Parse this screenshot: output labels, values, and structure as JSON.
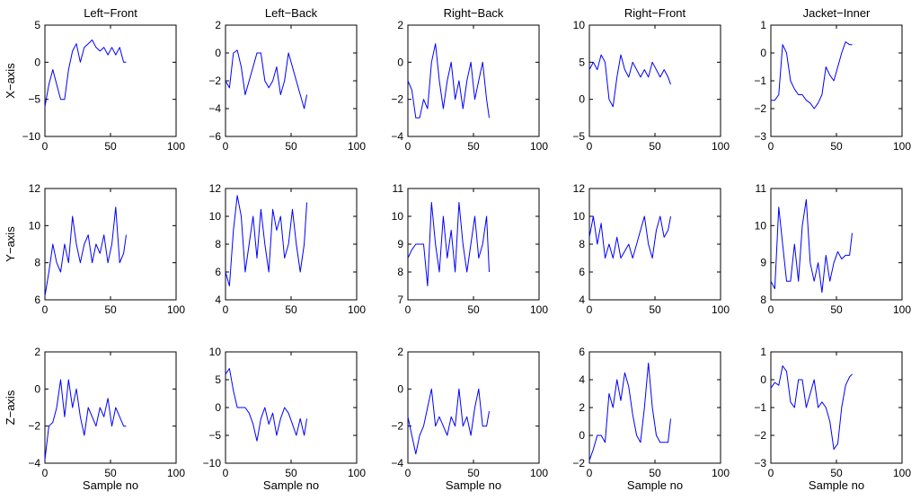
{
  "figure": {
    "background": "#ffffff",
    "line_color": "#0000ff"
  },
  "chart_data": [
    {
      "type": "line",
      "title": "Left−Front",
      "ylabel": "X−axis",
      "xlabel": "",
      "xlim": [
        0,
        100
      ],
      "ylim": [
        -10,
        5
      ],
      "xticks": [
        0,
        50,
        100
      ],
      "yticks": [
        -10,
        -5,
        0,
        5
      ],
      "grid": false,
      "color": "#0000ff",
      "x": [
        0,
        3,
        6,
        9,
        12,
        15,
        18,
        21,
        24,
        27,
        30,
        33,
        36,
        39,
        42,
        45,
        48,
        51,
        54,
        57,
        60,
        62
      ],
      "values": [
        -6,
        -3,
        -1,
        -3,
        -5,
        -5,
        -1,
        1.5,
        2.5,
        0,
        2,
        2.5,
        3,
        2,
        1.5,
        2,
        1,
        2,
        1,
        2,
        0,
        0
      ]
    },
    {
      "type": "line",
      "title": "Left−Back",
      "ylabel": "",
      "xlabel": "",
      "xlim": [
        0,
        100
      ],
      "ylim": [
        -6,
        2
      ],
      "xticks": [
        0,
        50,
        100
      ],
      "yticks": [
        -6,
        -4,
        -2,
        0,
        2
      ],
      "grid": false,
      "color": "#0000ff",
      "x": [
        0,
        3,
        6,
        9,
        12,
        15,
        18,
        21,
        24,
        27,
        30,
        33,
        36,
        39,
        42,
        45,
        48,
        51,
        54,
        57,
        60,
        62
      ],
      "values": [
        -2,
        -2.5,
        0,
        0.2,
        -1,
        -3,
        -2,
        -1,
        0,
        0,
        -2,
        -2.5,
        -2,
        -1,
        -3,
        -2,
        0,
        -1,
        -2,
        -3,
        -4,
        -3
      ]
    },
    {
      "type": "line",
      "title": "Right−Back",
      "ylabel": "",
      "xlabel": "",
      "xlim": [
        0,
        100
      ],
      "ylim": [
        -4,
        2
      ],
      "xticks": [
        0,
        50,
        100
      ],
      "yticks": [
        -4,
        -2,
        0,
        2
      ],
      "grid": false,
      "color": "#0000ff",
      "x": [
        0,
        3,
        6,
        9,
        12,
        15,
        18,
        21,
        24,
        27,
        30,
        33,
        36,
        39,
        42,
        45,
        48,
        51,
        54,
        57,
        60,
        62
      ],
      "values": [
        -1,
        -1.5,
        -3,
        -3,
        -2,
        -2.5,
        0,
        1,
        -1,
        -2.5,
        -1,
        0,
        -2,
        -1,
        -2.5,
        -1,
        0,
        -2,
        -1,
        0,
        -2,
        -3
      ]
    },
    {
      "type": "line",
      "title": "Right−Front",
      "ylabel": "",
      "xlabel": "",
      "xlim": [
        0,
        100
      ],
      "ylim": [
        -5,
        10
      ],
      "xticks": [
        0,
        50,
        100
      ],
      "yticks": [
        -5,
        0,
        5,
        10
      ],
      "grid": false,
      "color": "#0000ff",
      "x": [
        0,
        3,
        6,
        9,
        12,
        15,
        18,
        21,
        24,
        27,
        30,
        33,
        36,
        39,
        42,
        45,
        48,
        51,
        54,
        57,
        60,
        62
      ],
      "values": [
        4,
        5,
        4,
        6,
        5,
        0,
        -1,
        3,
        6,
        4,
        3,
        5,
        4,
        3,
        4,
        3,
        5,
        4,
        3,
        4,
        3,
        2
      ]
    },
    {
      "type": "line",
      "title": "Jacket−Inner",
      "ylabel": "",
      "xlabel": "",
      "xlim": [
        0,
        100
      ],
      "ylim": [
        -3,
        1
      ],
      "xticks": [
        0,
        50,
        100
      ],
      "yticks": [
        -3,
        -2,
        -1,
        0,
        1
      ],
      "grid": false,
      "color": "#0000ff",
      "x": [
        0,
        3,
        6,
        9,
        12,
        15,
        18,
        21,
        24,
        27,
        30,
        33,
        36,
        39,
        42,
        45,
        48,
        51,
        54,
        57,
        60,
        62
      ],
      "values": [
        -1.7,
        -1.7,
        -1.5,
        0.3,
        0,
        -1,
        -1.3,
        -1.5,
        -1.5,
        -1.7,
        -1.8,
        -2,
        -1.8,
        -1.5,
        -0.5,
        -0.8,
        -1,
        -0.5,
        0,
        0.4,
        0.3,
        0.3
      ]
    },
    {
      "type": "line",
      "title": "",
      "ylabel": "Y−axis",
      "xlabel": "",
      "xlim": [
        0,
        100
      ],
      "ylim": [
        6,
        12
      ],
      "xticks": [
        0,
        50,
        100
      ],
      "yticks": [
        6,
        8,
        10,
        12
      ],
      "grid": false,
      "color": "#0000ff",
      "x": [
        0,
        3,
        6,
        9,
        12,
        15,
        18,
        21,
        24,
        27,
        30,
        33,
        36,
        39,
        42,
        45,
        48,
        51,
        54,
        57,
        60,
        62
      ],
      "values": [
        6.2,
        7.5,
        9,
        8,
        7.5,
        9,
        8,
        10.5,
        9,
        8,
        9,
        9.5,
        8,
        9,
        8.5,
        9.5,
        8,
        9,
        11,
        8,
        8.5,
        9.5
      ]
    },
    {
      "type": "line",
      "title": "",
      "ylabel": "",
      "xlabel": "",
      "xlim": [
        0,
        100
      ],
      "ylim": [
        4,
        12
      ],
      "xticks": [
        0,
        50,
        100
      ],
      "yticks": [
        4,
        6,
        8,
        10,
        12
      ],
      "grid": false,
      "color": "#0000ff",
      "x": [
        0,
        3,
        6,
        9,
        12,
        15,
        18,
        21,
        24,
        27,
        30,
        33,
        36,
        39,
        42,
        45,
        48,
        51,
        54,
        57,
        60,
        62
      ],
      "values": [
        6,
        5,
        9,
        11.5,
        10,
        6,
        8,
        10,
        7,
        10.5,
        8,
        6,
        10.5,
        9,
        10,
        7,
        8,
        10.5,
        8,
        6,
        8,
        11
      ]
    },
    {
      "type": "line",
      "title": "",
      "ylabel": "",
      "xlabel": "",
      "xlim": [
        0,
        100
      ],
      "ylim": [
        7,
        11
      ],
      "xticks": [
        0,
        50,
        100
      ],
      "yticks": [
        7,
        8,
        9,
        10,
        11
      ],
      "grid": false,
      "color": "#0000ff",
      "x": [
        0,
        3,
        6,
        9,
        12,
        15,
        18,
        21,
        24,
        27,
        30,
        33,
        36,
        39,
        42,
        45,
        48,
        51,
        54,
        57,
        60,
        62
      ],
      "values": [
        8.5,
        8.8,
        9,
        9,
        9,
        7.5,
        10.5,
        9,
        8,
        10,
        8.5,
        9.5,
        8,
        10.5,
        9,
        8,
        9,
        10,
        8.5,
        9,
        10,
        8
      ]
    },
    {
      "type": "line",
      "title": "",
      "ylabel": "",
      "xlabel": "",
      "xlim": [
        0,
        100
      ],
      "ylim": [
        4,
        12
      ],
      "xticks": [
        0,
        50,
        100
      ],
      "yticks": [
        4,
        6,
        8,
        10,
        12
      ],
      "grid": false,
      "color": "#0000ff",
      "x": [
        0,
        3,
        6,
        9,
        12,
        15,
        18,
        21,
        24,
        27,
        30,
        33,
        36,
        39,
        42,
        45,
        48,
        51,
        54,
        57,
        60,
        62
      ],
      "values": [
        8.5,
        10,
        8,
        9.5,
        7,
        8,
        7,
        8.5,
        7,
        7.5,
        8,
        7,
        8,
        9,
        10,
        8,
        7,
        9,
        10,
        8.5,
        9,
        10
      ]
    },
    {
      "type": "line",
      "title": "",
      "ylabel": "",
      "xlabel": "",
      "xlim": [
        0,
        100
      ],
      "ylim": [
        8,
        11
      ],
      "xticks": [
        0,
        50,
        100
      ],
      "yticks": [
        8,
        9,
        10,
        11
      ],
      "grid": false,
      "color": "#0000ff",
      "x": [
        0,
        3,
        6,
        9,
        12,
        15,
        18,
        21,
        24,
        27,
        30,
        33,
        36,
        39,
        42,
        45,
        48,
        51,
        54,
        57,
        60,
        62
      ],
      "values": [
        8.5,
        8.3,
        10.5,
        9.5,
        8.5,
        8.5,
        9.5,
        8.5,
        10,
        10.7,
        9,
        8.5,
        9,
        8.2,
        9.2,
        8.5,
        9,
        9.3,
        9.1,
        9.2,
        9.2,
        9.8
      ]
    },
    {
      "type": "line",
      "title": "",
      "ylabel": "Z−axis",
      "xlabel": "Sample no",
      "xlim": [
        0,
        100
      ],
      "ylim": [
        -4,
        2
      ],
      "xticks": [
        0,
        50,
        100
      ],
      "yticks": [
        -4,
        -2,
        0,
        2
      ],
      "grid": false,
      "color": "#0000ff",
      "x": [
        0,
        3,
        6,
        9,
        12,
        15,
        18,
        21,
        24,
        27,
        30,
        33,
        36,
        39,
        42,
        45,
        48,
        51,
        54,
        57,
        60,
        62
      ],
      "values": [
        -3.8,
        -2,
        -1.8,
        -1,
        0.5,
        -1.5,
        0.5,
        -1,
        0,
        -1.5,
        -2.5,
        -1,
        -1.5,
        -2,
        -1,
        -1.5,
        -0.5,
        -2,
        -1,
        -1.5,
        -2,
        -2
      ]
    },
    {
      "type": "line",
      "title": "",
      "ylabel": "",
      "xlabel": "Sample no",
      "xlim": [
        0,
        100
      ],
      "ylim": [
        -10,
        10
      ],
      "xticks": [
        0,
        50,
        100
      ],
      "yticks": [
        -10,
        -5,
        0,
        5,
        10
      ],
      "grid": false,
      "color": "#0000ff",
      "x": [
        0,
        3,
        6,
        9,
        12,
        15,
        18,
        21,
        24,
        27,
        30,
        33,
        36,
        39,
        42,
        45,
        48,
        51,
        54,
        57,
        60,
        62
      ],
      "values": [
        6,
        7,
        3,
        0,
        0,
        0,
        -1,
        -3,
        -6,
        -2,
        0,
        -3,
        -1,
        -5,
        -2,
        0,
        -1,
        -3,
        -5,
        -2,
        -5,
        -2
      ]
    },
    {
      "type": "line",
      "title": "",
      "ylabel": "",
      "xlabel": "Sample no",
      "xlim": [
        0,
        100
      ],
      "ylim": [
        -4,
        2
      ],
      "xticks": [
        0,
        50,
        100
      ],
      "yticks": [
        -4,
        -2,
        0,
        2
      ],
      "grid": false,
      "color": "#0000ff",
      "x": [
        0,
        3,
        6,
        9,
        12,
        15,
        18,
        21,
        24,
        27,
        30,
        33,
        36,
        39,
        42,
        45,
        48,
        51,
        54,
        57,
        60,
        62
      ],
      "values": [
        -1.5,
        -2.5,
        -3.5,
        -2.5,
        -2,
        -1,
        0,
        -2,
        -1.5,
        -2,
        -2.5,
        -1.5,
        -2,
        0,
        -2,
        -1.5,
        -2.5,
        -1,
        0,
        -2,
        -2,
        -1.2
      ]
    },
    {
      "type": "line",
      "title": "",
      "ylabel": "",
      "xlabel": "Sample no",
      "xlim": [
        0,
        100
      ],
      "ylim": [
        -2,
        6
      ],
      "xticks": [
        0,
        50,
        100
      ],
      "yticks": [
        -2,
        0,
        2,
        4,
        6
      ],
      "grid": false,
      "color": "#0000ff",
      "x": [
        0,
        3,
        6,
        9,
        12,
        15,
        18,
        21,
        24,
        27,
        30,
        33,
        36,
        39,
        42,
        45,
        48,
        51,
        54,
        57,
        60,
        62
      ],
      "values": [
        -1.8,
        -1,
        0,
        0,
        -0.5,
        3,
        2,
        4,
        2.5,
        4.5,
        3.5,
        1.5,
        0,
        -0.5,
        2,
        5.2,
        2,
        0,
        -0.5,
        -0.5,
        -0.5,
        1.2
      ]
    },
    {
      "type": "line",
      "title": "",
      "ylabel": "",
      "xlabel": "Sample no",
      "xlim": [
        0,
        100
      ],
      "ylim": [
        -3,
        1
      ],
      "xticks": [
        0,
        50,
        100
      ],
      "yticks": [
        -3,
        -2,
        -1,
        0,
        1
      ],
      "grid": false,
      "color": "#0000ff",
      "x": [
        0,
        3,
        6,
        9,
        12,
        15,
        18,
        21,
        24,
        27,
        30,
        33,
        36,
        39,
        42,
        45,
        48,
        51,
        54,
        57,
        60,
        62
      ],
      "values": [
        -0.3,
        -0.1,
        -0.2,
        0.5,
        0.3,
        -0.8,
        -1,
        0,
        0,
        -1,
        -0.5,
        0,
        -1,
        -0.8,
        -1,
        -1.5,
        -2.5,
        -2.3,
        -1,
        -0.2,
        0.1,
        0.2
      ]
    }
  ]
}
